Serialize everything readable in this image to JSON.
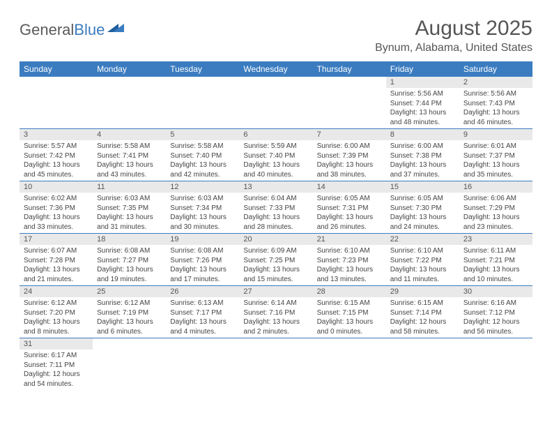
{
  "logo": {
    "text_a": "General",
    "text_b": "Blue"
  },
  "title": "August 2025",
  "location": "Bynum, Alabama, United States",
  "header_bg": "#3b7cc0",
  "daynum_bg": "#e9e9e9",
  "columns": [
    "Sunday",
    "Monday",
    "Tuesday",
    "Wednesday",
    "Thursday",
    "Friday",
    "Saturday"
  ],
  "weeks": [
    [
      null,
      null,
      null,
      null,
      null,
      {
        "n": "1",
        "sunrise": "Sunrise: 5:56 AM",
        "sunset": "Sunset: 7:44 PM",
        "day": "Daylight: 13 hours and 48 minutes."
      },
      {
        "n": "2",
        "sunrise": "Sunrise: 5:56 AM",
        "sunset": "Sunset: 7:43 PM",
        "day": "Daylight: 13 hours and 46 minutes."
      }
    ],
    [
      {
        "n": "3",
        "sunrise": "Sunrise: 5:57 AM",
        "sunset": "Sunset: 7:42 PM",
        "day": "Daylight: 13 hours and 45 minutes."
      },
      {
        "n": "4",
        "sunrise": "Sunrise: 5:58 AM",
        "sunset": "Sunset: 7:41 PM",
        "day": "Daylight: 13 hours and 43 minutes."
      },
      {
        "n": "5",
        "sunrise": "Sunrise: 5:58 AM",
        "sunset": "Sunset: 7:40 PM",
        "day": "Daylight: 13 hours and 42 minutes."
      },
      {
        "n": "6",
        "sunrise": "Sunrise: 5:59 AM",
        "sunset": "Sunset: 7:40 PM",
        "day": "Daylight: 13 hours and 40 minutes."
      },
      {
        "n": "7",
        "sunrise": "Sunrise: 6:00 AM",
        "sunset": "Sunset: 7:39 PM",
        "day": "Daylight: 13 hours and 38 minutes."
      },
      {
        "n": "8",
        "sunrise": "Sunrise: 6:00 AM",
        "sunset": "Sunset: 7:38 PM",
        "day": "Daylight: 13 hours and 37 minutes."
      },
      {
        "n": "9",
        "sunrise": "Sunrise: 6:01 AM",
        "sunset": "Sunset: 7:37 PM",
        "day": "Daylight: 13 hours and 35 minutes."
      }
    ],
    [
      {
        "n": "10",
        "sunrise": "Sunrise: 6:02 AM",
        "sunset": "Sunset: 7:36 PM",
        "day": "Daylight: 13 hours and 33 minutes."
      },
      {
        "n": "11",
        "sunrise": "Sunrise: 6:03 AM",
        "sunset": "Sunset: 7:35 PM",
        "day": "Daylight: 13 hours and 31 minutes."
      },
      {
        "n": "12",
        "sunrise": "Sunrise: 6:03 AM",
        "sunset": "Sunset: 7:34 PM",
        "day": "Daylight: 13 hours and 30 minutes."
      },
      {
        "n": "13",
        "sunrise": "Sunrise: 6:04 AM",
        "sunset": "Sunset: 7:33 PM",
        "day": "Daylight: 13 hours and 28 minutes."
      },
      {
        "n": "14",
        "sunrise": "Sunrise: 6:05 AM",
        "sunset": "Sunset: 7:31 PM",
        "day": "Daylight: 13 hours and 26 minutes."
      },
      {
        "n": "15",
        "sunrise": "Sunrise: 6:05 AM",
        "sunset": "Sunset: 7:30 PM",
        "day": "Daylight: 13 hours and 24 minutes."
      },
      {
        "n": "16",
        "sunrise": "Sunrise: 6:06 AM",
        "sunset": "Sunset: 7:29 PM",
        "day": "Daylight: 13 hours and 23 minutes."
      }
    ],
    [
      {
        "n": "17",
        "sunrise": "Sunrise: 6:07 AM",
        "sunset": "Sunset: 7:28 PM",
        "day": "Daylight: 13 hours and 21 minutes."
      },
      {
        "n": "18",
        "sunrise": "Sunrise: 6:08 AM",
        "sunset": "Sunset: 7:27 PM",
        "day": "Daylight: 13 hours and 19 minutes."
      },
      {
        "n": "19",
        "sunrise": "Sunrise: 6:08 AM",
        "sunset": "Sunset: 7:26 PM",
        "day": "Daylight: 13 hours and 17 minutes."
      },
      {
        "n": "20",
        "sunrise": "Sunrise: 6:09 AM",
        "sunset": "Sunset: 7:25 PM",
        "day": "Daylight: 13 hours and 15 minutes."
      },
      {
        "n": "21",
        "sunrise": "Sunrise: 6:10 AM",
        "sunset": "Sunset: 7:23 PM",
        "day": "Daylight: 13 hours and 13 minutes."
      },
      {
        "n": "22",
        "sunrise": "Sunrise: 6:10 AM",
        "sunset": "Sunset: 7:22 PM",
        "day": "Daylight: 13 hours and 11 minutes."
      },
      {
        "n": "23",
        "sunrise": "Sunrise: 6:11 AM",
        "sunset": "Sunset: 7:21 PM",
        "day": "Daylight: 13 hours and 10 minutes."
      }
    ],
    [
      {
        "n": "24",
        "sunrise": "Sunrise: 6:12 AM",
        "sunset": "Sunset: 7:20 PM",
        "day": "Daylight: 13 hours and 8 minutes."
      },
      {
        "n": "25",
        "sunrise": "Sunrise: 6:12 AM",
        "sunset": "Sunset: 7:19 PM",
        "day": "Daylight: 13 hours and 6 minutes."
      },
      {
        "n": "26",
        "sunrise": "Sunrise: 6:13 AM",
        "sunset": "Sunset: 7:17 PM",
        "day": "Daylight: 13 hours and 4 minutes."
      },
      {
        "n": "27",
        "sunrise": "Sunrise: 6:14 AM",
        "sunset": "Sunset: 7:16 PM",
        "day": "Daylight: 13 hours and 2 minutes."
      },
      {
        "n": "28",
        "sunrise": "Sunrise: 6:15 AM",
        "sunset": "Sunset: 7:15 PM",
        "day": "Daylight: 13 hours and 0 minutes."
      },
      {
        "n": "29",
        "sunrise": "Sunrise: 6:15 AM",
        "sunset": "Sunset: 7:14 PM",
        "day": "Daylight: 12 hours and 58 minutes."
      },
      {
        "n": "30",
        "sunrise": "Sunrise: 6:16 AM",
        "sunset": "Sunset: 7:12 PM",
        "day": "Daylight: 12 hours and 56 minutes."
      }
    ],
    [
      {
        "n": "31",
        "sunrise": "Sunrise: 6:17 AM",
        "sunset": "Sunset: 7:11 PM",
        "day": "Daylight: 12 hours and 54 minutes."
      },
      null,
      null,
      null,
      null,
      null,
      null
    ]
  ]
}
